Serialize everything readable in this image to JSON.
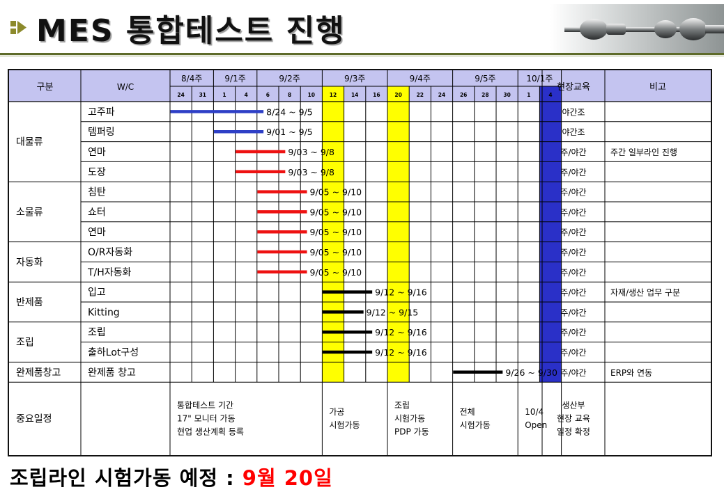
{
  "title": "MES 통합테스트 진행",
  "table": {
    "header": {
      "category": "구분",
      "wc": "W/C",
      "training": "현장교육",
      "remark": "비고",
      "weeks": [
        "8/4주",
        "9/1주",
        "9/2주",
        "9/3주",
        "9/4주",
        "9/5주",
        "10/1주"
      ],
      "days": [
        "24",
        "31",
        "1",
        "4",
        "6",
        "8",
        "10",
        "12",
        "14",
        "16",
        "20",
        "22",
        "24",
        "26",
        "28",
        "30",
        "1",
        "4"
      ]
    },
    "groups": [
      {
        "name": "대물류",
        "rows": [
          {
            "wc": "고주파",
            "bar_color": "#2e3fc6",
            "start": "8/24",
            "end": "9/5",
            "label": "8/24 ~ 9/5",
            "training": "야간조",
            "remark": ""
          },
          {
            "wc": "템퍼링",
            "bar_color": "#2e3fc6",
            "start": "9/01",
            "end": "9/5",
            "label": "9/01 ~ 9/5",
            "training": "야간조",
            "remark": ""
          },
          {
            "wc": "연마",
            "bar_color": "#ee1111",
            "start": "9/03",
            "end": "9/8",
            "label": "9/03 ~ 9/8",
            "training": "주/야간",
            "remark": "주간 일부라인 진행"
          },
          {
            "wc": "도장",
            "bar_color": "#ee1111",
            "start": "9/03",
            "end": "9/8",
            "label": "9/03 ~ 9/8",
            "training": "주/야간",
            "remark": ""
          }
        ]
      },
      {
        "name": "소물류",
        "rows": [
          {
            "wc": "침탄",
            "bar_color": "#ee1111",
            "start": "9/05",
            "end": "9/10",
            "label": "9/05 ~ 9/10",
            "training": "주/야간",
            "remark": ""
          },
          {
            "wc": "쇼터",
            "bar_color": "#ee1111",
            "start": "9/05",
            "end": "9/10",
            "label": "9/05 ~ 9/10",
            "training": "주/야간",
            "remark": ""
          },
          {
            "wc": "연마",
            "bar_color": "#ee1111",
            "start": "9/05",
            "end": "9/10",
            "label": "9/05 ~ 9/10",
            "training": "주/야간",
            "remark": ""
          }
        ]
      },
      {
        "name": "자동화",
        "rows": [
          {
            "wc": "O/R자동화",
            "bar_color": "#ee1111",
            "start": "9/05",
            "end": "9/10",
            "label": "9/05 ~ 9/10",
            "training": "주/야간",
            "remark": ""
          },
          {
            "wc": "T/H자동화",
            "bar_color": "#ee1111",
            "start": "9/05",
            "end": "9/10",
            "label": "9/05 ~ 9/10",
            "training": "주/야간",
            "remark": ""
          }
        ]
      },
      {
        "name": "반제품",
        "rows": [
          {
            "wc": "입고",
            "bar_color": "#000000",
            "start": "9/12",
            "end": "9/16",
            "label": "9/12 ~ 9/16",
            "training": "주/야간",
            "remark": "자재/생산 업무 구분"
          },
          {
            "wc": "Kitting",
            "bar_color": "#000000",
            "start": "9/12",
            "end": "9/15",
            "label": "9/12 ~ 9/15",
            "training": "주/야간",
            "remark": ""
          }
        ]
      },
      {
        "name": "조립",
        "rows": [
          {
            "wc": "조립",
            "bar_color": "#000000",
            "start": "9/12",
            "end": "9/16",
            "label": "9/12 ~ 9/16",
            "training": "주/야간",
            "remark": ""
          },
          {
            "wc": "출하Lot구성",
            "bar_color": "#000000",
            "start": "9/12",
            "end": "9/16",
            "label": "9/12 ~ 9/16",
            "training": "주/야간",
            "remark": ""
          }
        ]
      },
      {
        "name": "완제품창고",
        "rows": [
          {
            "wc": "완제품 창고",
            "bar_color": "#000000",
            "start": "9/26",
            "end": "9/30",
            "label": "9/26 ~ 9/30",
            "training": "주/야간",
            "remark": "ERP와 연동"
          }
        ]
      }
    ],
    "milestones": {
      "label": "중요일정",
      "notes": [
        {
          "lines": [
            "통합테스트 기간",
            "17\" 모니터 가동",
            "현업 생산계획 등록"
          ]
        },
        {
          "lines": [
            "가공",
            "시험가동"
          ]
        },
        {
          "lines": [
            "조립",
            "시험가동",
            "PDP 가동"
          ]
        },
        {
          "lines": [
            "전체",
            "시험가동"
          ]
        },
        {
          "lines": [
            "10/4",
            "Open"
          ]
        }
      ],
      "training_lines": [
        "생산부",
        "현장 교육",
        "일정 확정"
      ]
    },
    "highlights": {
      "yellow": "#ffff00",
      "blue": "#2a30c8"
    },
    "header_bg": "#c4c4f0"
  },
  "footer": {
    "text": "조립라인 시험가동 예정 : ",
    "highlight": "9월 20일",
    "highlight_color": "#ff0000"
  }
}
